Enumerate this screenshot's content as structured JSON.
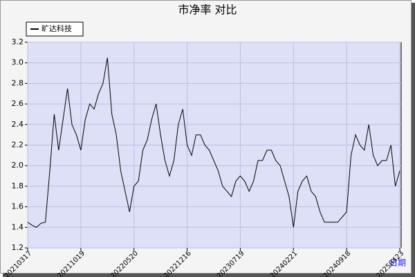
{
  "chart_data": {
    "type": "line",
    "title": "市净率 对比",
    "x_label": "日期",
    "categories": [
      "20210317",
      null,
      null,
      null,
      null,
      null,
      null,
      null,
      null,
      null,
      null,
      null,
      "20211019",
      null,
      null,
      null,
      null,
      null,
      null,
      null,
      null,
      null,
      null,
      null,
      "20220520",
      null,
      null,
      null,
      null,
      null,
      null,
      null,
      null,
      null,
      null,
      null,
      "20221216",
      null,
      null,
      null,
      null,
      null,
      null,
      null,
      null,
      null,
      null,
      null,
      "20230719",
      null,
      null,
      null,
      null,
      null,
      null,
      null,
      null,
      null,
      null,
      null,
      "20240221",
      null,
      null,
      null,
      null,
      null,
      null,
      null,
      null,
      null,
      null,
      null,
      "20240918",
      null,
      null,
      null,
      null,
      null,
      null,
      null,
      null,
      null,
      null,
      null,
      "20250423"
    ],
    "series": [
      {
        "name": "旷达科技",
        "color": "#000000",
        "values": [
          1.45,
          1.42,
          1.4,
          1.44,
          1.45,
          1.95,
          2.5,
          2.15,
          2.45,
          2.75,
          2.4,
          2.3,
          2.15,
          2.45,
          2.6,
          2.55,
          2.7,
          2.8,
          3.05,
          2.5,
          2.3,
          1.95,
          1.75,
          1.55,
          1.8,
          1.85,
          2.15,
          2.25,
          2.45,
          2.6,
          2.3,
          2.05,
          1.9,
          2.05,
          2.4,
          2.55,
          2.2,
          2.1,
          2.3,
          2.3,
          2.2,
          2.15,
          2.05,
          1.95,
          1.8,
          1.75,
          1.7,
          1.85,
          1.9,
          1.85,
          1.75,
          1.85,
          2.05,
          2.05,
          2.15,
          2.15,
          2.05,
          2.0,
          1.85,
          1.7,
          1.4,
          1.75,
          1.85,
          1.9,
          1.75,
          1.7,
          1.55,
          1.45,
          1.45,
          1.45,
          1.45,
          1.5,
          1.55,
          2.1,
          2.3,
          2.2,
          2.15,
          2.4,
          2.1,
          2.0,
          2.05,
          2.05,
          2.2,
          1.8,
          1.95
        ]
      }
    ],
    "ylim": [
      1.2,
      3.2
    ],
    "yticks": [
      1.2,
      1.4,
      1.6,
      1.8,
      {
        "value": 2,
        "label": "2.0"
      },
      2.2,
      2.4,
      2.6,
      2.8,
      {
        "value": 3,
        "label": "3.0"
      },
      3.2
    ],
    "grid": true,
    "legend": "upper left"
  }
}
